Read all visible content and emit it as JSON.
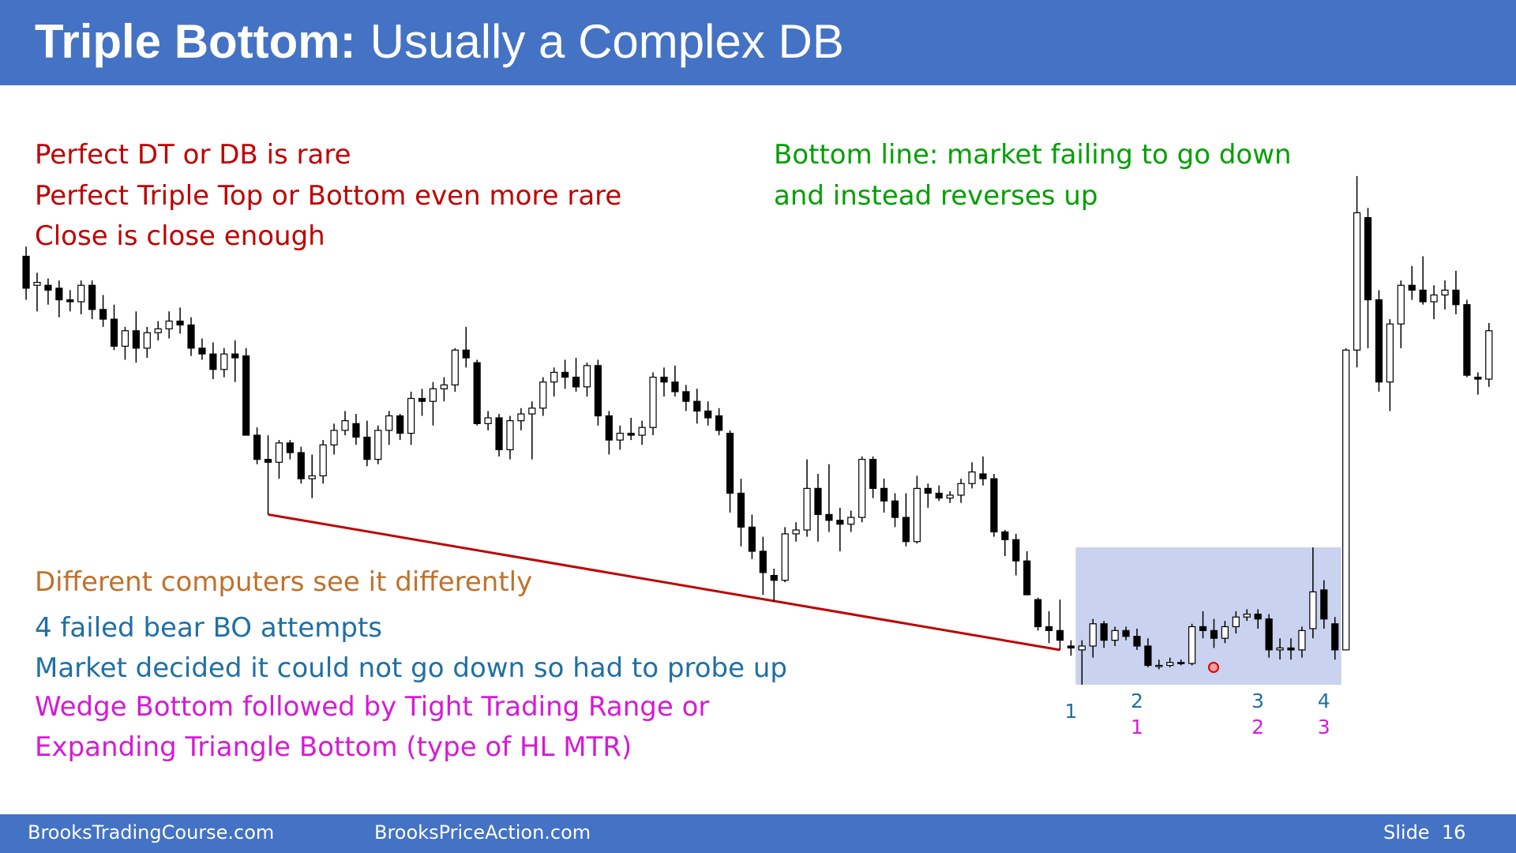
{
  "header": {
    "title_bold": "Triple Bottom:",
    "title_rest": "Usually a Complex DB"
  },
  "notes_left": [
    "Perfect DT or DB is rare",
    "Perfect Triple Top or Bottom even more rare",
    "Close is close enough"
  ],
  "notes_right": [
    "Bottom line: market failing to go down",
    "and instead reverses up"
  ],
  "notes_bottom": [
    {
      "text": "Different computers see it differently",
      "color": "#c0712c"
    },
    {
      "text": "4 failed bear BO attempts",
      "color": "#1f6fa5"
    },
    {
      "text": "Market decided it could not go down so had to probe up",
      "color": "#1f6fa5"
    },
    {
      "text": "Wedge Bottom followed by Tight Trading Range or",
      "color": "#d61ad6"
    },
    {
      "text": "Expanding Triangle Bottom (type of HL MTR)",
      "color": "#d61ad6"
    }
  ],
  "footer": {
    "site_1": "BrooksTradingCourse.com",
    "site_2": "BrooksPriceAction.com",
    "slide": "Slide  16"
  },
  "chart_data": {
    "type": "candlestick",
    "ylim": [
      0,
      800
    ],
    "up_color": "#ffffff",
    "down_color": "#000000",
    "trend_color": "#c00000",
    "range_color": "#c9d2ee",
    "annotations": [
      {
        "top": "1"
      },
      {
        "top": "2",
        "bottom": "1"
      },
      {
        "top": "3",
        "bottom": "2"
      },
      {
        "top": "4",
        "bottom": "3"
      }
    ],
    "candles": [
      [
        535,
        545,
        490,
        502
      ],
      [
        505,
        518,
        478,
        508
      ],
      [
        505,
        512,
        485,
        500
      ],
      [
        502,
        510,
        472,
        490
      ],
      [
        490,
        500,
        478,
        488
      ],
      [
        488,
        510,
        475,
        505
      ],
      [
        505,
        510,
        470,
        480
      ],
      [
        480,
        495,
        462,
        470
      ],
      [
        470,
        485,
        438,
        442
      ],
      [
        442,
        462,
        428,
        458
      ],
      [
        458,
        478,
        425,
        440
      ],
      [
        440,
        462,
        430,
        456
      ],
      [
        456,
        468,
        448,
        460
      ],
      [
        460,
        478,
        450,
        468
      ],
      [
        468,
        482,
        455,
        464
      ],
      [
        464,
        472,
        432,
        440
      ],
      [
        440,
        450,
        428,
        434
      ],
      [
        434,
        446,
        408,
        418
      ],
      [
        418,
        440,
        410,
        434
      ],
      [
        434,
        448,
        405,
        430
      ],
      [
        432,
        440,
        350,
        350
      ],
      [
        350,
        358,
        320,
        325
      ],
      [
        325,
        350,
        268,
        322
      ],
      [
        322,
        345,
        305,
        342
      ],
      [
        342,
        345,
        325,
        332
      ],
      [
        332,
        338,
        300,
        305
      ],
      [
        305,
        330,
        285,
        308
      ],
      [
        308,
        345,
        300,
        340
      ],
      [
        340,
        362,
        330,
        355
      ],
      [
        355,
        375,
        350,
        365
      ],
      [
        362,
        372,
        340,
        348
      ],
      [
        348,
        365,
        318,
        325
      ],
      [
        325,
        360,
        320,
        355
      ],
      [
        355,
        375,
        340,
        370
      ],
      [
        370,
        372,
        345,
        352
      ],
      [
        352,
        395,
        340,
        388
      ],
      [
        388,
        398,
        370,
        385
      ],
      [
        385,
        405,
        360,
        398
      ],
      [
        398,
        410,
        385,
        402
      ],
      [
        402,
        440,
        395,
        438
      ],
      [
        438,
        462,
        420,
        430
      ],
      [
        425,
        428,
        360,
        362
      ],
      [
        362,
        375,
        355,
        368
      ],
      [
        368,
        372,
        328,
        335
      ],
      [
        335,
        370,
        325,
        365
      ],
      [
        365,
        378,
        355,
        372
      ],
      [
        372,
        385,
        325,
        378
      ],
      [
        378,
        410,
        370,
        405
      ],
      [
        405,
        420,
        390,
        415
      ],
      [
        415,
        428,
        398,
        410
      ],
      [
        410,
        430,
        395,
        400
      ],
      [
        400,
        425,
        390,
        422
      ],
      [
        422,
        428,
        360,
        370
      ],
      [
        370,
        375,
        330,
        345
      ],
      [
        345,
        360,
        335,
        352
      ],
      [
        352,
        368,
        345,
        350
      ],
      [
        350,
        365,
        340,
        358
      ],
      [
        358,
        415,
        350,
        410
      ],
      [
        410,
        420,
        390,
        405
      ],
      [
        405,
        422,
        390,
        395
      ],
      [
        395,
        402,
        375,
        385
      ],
      [
        385,
        398,
        362,
        375
      ],
      [
        375,
        385,
        360,
        368
      ],
      [
        370,
        378,
        350,
        355
      ],
      [
        352,
        355,
        270,
        290
      ],
      [
        290,
        305,
        235,
        255
      ],
      [
        255,
        268,
        222,
        230
      ],
      [
        230,
        245,
        185,
        208
      ],
      [
        205,
        212,
        178,
        200
      ],
      [
        200,
        255,
        198,
        248
      ],
      [
        248,
        260,
        240,
        252
      ],
      [
        252,
        325,
        245,
        295
      ],
      [
        295,
        310,
        240,
        268
      ],
      [
        268,
        320,
        250,
        262
      ],
      [
        262,
        275,
        230,
        258
      ],
      [
        258,
        272,
        250,
        265
      ],
      [
        265,
        328,
        260,
        325
      ],
      [
        325,
        328,
        285,
        295
      ],
      [
        295,
        305,
        270,
        282
      ],
      [
        282,
        290,
        255,
        265
      ],
      [
        265,
        290,
        235,
        240
      ],
      [
        240,
        308,
        238,
        295
      ],
      [
        295,
        300,
        275,
        290
      ],
      [
        290,
        298,
        282,
        285
      ],
      [
        285,
        292,
        280,
        288
      ],
      [
        288,
        305,
        280,
        300
      ],
      [
        300,
        322,
        295,
        312
      ],
      [
        310,
        328,
        298,
        305
      ],
      [
        305,
        310,
        245,
        250
      ],
      [
        250,
        252,
        225,
        242
      ],
      [
        242,
        248,
        205,
        220
      ],
      [
        220,
        230,
        185,
        185
      ],
      [
        180,
        182,
        148,
        152
      ],
      [
        152,
        168,
        135,
        148
      ],
      [
        148,
        180,
        128,
        138
      ],
      [
        132,
        138,
        122,
        130
      ],
      [
        128,
        138,
        92,
        132
      ],
      [
        132,
        160,
        120,
        155
      ],
      [
        155,
        158,
        130,
        138
      ],
      [
        138,
        152,
        132,
        148
      ],
      [
        148,
        152,
        138,
        142
      ],
      [
        142,
        150,
        128,
        132
      ],
      [
        132,
        140,
        110,
        112
      ],
      [
        112,
        118,
        108,
        112
      ],
      [
        112,
        120,
        110,
        115
      ],
      [
        115,
        118,
        112,
        114
      ],
      [
        114,
        155,
        112,
        152
      ],
      [
        152,
        168,
        140,
        148
      ],
      [
        148,
        160,
        130,
        140
      ],
      [
        140,
        158,
        135,
        152
      ],
      [
        152,
        168,
        145,
        162
      ],
      [
        162,
        170,
        158,
        165
      ],
      [
        165,
        170,
        150,
        160
      ],
      [
        160,
        165,
        120,
        128
      ],
      [
        128,
        140,
        118,
        130
      ],
      [
        130,
        140,
        118,
        128
      ],
      [
        128,
        152,
        120,
        148
      ],
      [
        150,
        234,
        140,
        188
      ],
      [
        190,
        200,
        150,
        160
      ],
      [
        155,
        162,
        118,
        128
      ],
      [
        128,
        440,
        128,
        438
      ],
      [
        438,
        618,
        420,
        580
      ],
      [
        575,
        585,
        440,
        490
      ],
      [
        490,
        500,
        395,
        405
      ],
      [
        405,
        470,
        375,
        465
      ],
      [
        465,
        510,
        440,
        505
      ],
      [
        505,
        525,
        490,
        500
      ],
      [
        500,
        535,
        485,
        488
      ],
      [
        488,
        505,
        470,
        495
      ],
      [
        495,
        510,
        480,
        500
      ],
      [
        500,
        520,
        475,
        485
      ],
      [
        485,
        490,
        410,
        412
      ],
      [
        410,
        415,
        392,
        408
      ],
      [
        408,
        466,
        400,
        458
      ]
    ]
  }
}
